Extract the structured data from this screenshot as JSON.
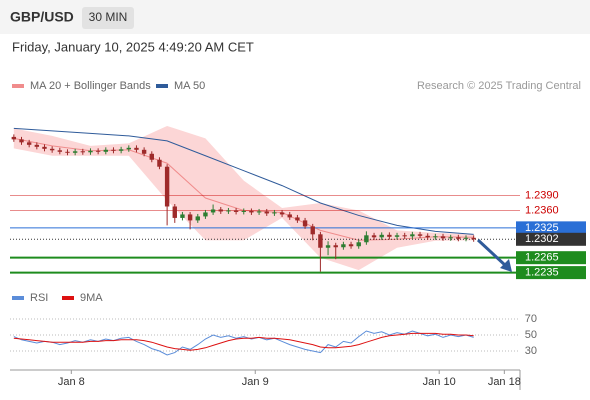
{
  "header": {
    "symbol": "GBP/USD",
    "interval": "30 MIN",
    "timestamp": "Friday, January 10, 2025 4:49:20 AM CET"
  },
  "chart_data": [
    {
      "type": "candlestick",
      "credit": "Research © 2025 Trading Central",
      "xlim": [
        -0.5,
        65
      ],
      "ylim": [
        1.22,
        1.255
      ],
      "xticks": [
        {
          "value": 7.5,
          "label": "Jan 8"
        },
        {
          "value": 31.5,
          "label": "Jan 9"
        },
        {
          "value": 55.5,
          "label": "Jan 10"
        },
        {
          "value": 64,
          "label": "Jan 18"
        }
      ],
      "up_color": "#2e7d32",
      "down_color": "#9e2a2a",
      "candles": {
        "open": [
          1.2508,
          1.2503,
          1.2497,
          1.2492,
          1.2488,
          1.2484,
          1.2481,
          1.2478,
          1.2476,
          1.2479,
          1.2477,
          1.248,
          1.2478,
          1.2482,
          1.248,
          1.2483,
          1.2486,
          1.2482,
          1.2474,
          1.2462,
          1.2448,
          1.2368,
          1.2345,
          1.2352,
          1.234,
          1.2348,
          1.2356,
          1.2362,
          1.2358,
          1.236,
          1.2357,
          1.2359,
          1.2356,
          1.2358,
          1.2354,
          1.2356,
          1.2352,
          1.2346,
          1.234,
          1.2328,
          1.2312,
          1.2285,
          1.229,
          1.2286,
          1.2292,
          1.2288,
          1.2296,
          1.231,
          1.2306,
          1.2311,
          1.2307,
          1.231,
          1.2308,
          1.2312,
          1.2309,
          1.2306,
          1.2308,
          1.2304,
          1.2306,
          1.2303,
          1.2305
        ],
        "high": [
          1.2513,
          1.2508,
          1.2502,
          1.2497,
          1.2493,
          1.2489,
          1.2486,
          1.2483,
          1.2484,
          1.2484,
          1.2485,
          1.2485,
          1.2487,
          1.2487,
          1.2488,
          1.2491,
          1.2491,
          1.2487,
          1.2479,
          1.2467,
          1.2453,
          1.2373,
          1.2357,
          1.2357,
          1.2353,
          1.2361,
          1.2372,
          1.2367,
          1.2365,
          1.2365,
          1.2364,
          1.2364,
          1.2363,
          1.2363,
          1.2361,
          1.2361,
          1.2357,
          1.2351,
          1.2345,
          1.2333,
          1.2317,
          1.2298,
          1.2295,
          1.2297,
          1.2297,
          1.2301,
          1.2318,
          1.2315,
          1.2316,
          1.2316,
          1.2315,
          1.2315,
          1.2317,
          1.2317,
          1.2314,
          1.2313,
          1.2313,
          1.2311,
          1.2311,
          1.231,
          1.231
        ],
        "low": [
          1.2498,
          1.2492,
          1.2487,
          1.2483,
          1.2479,
          1.2476,
          1.2473,
          1.2471,
          1.2471,
          1.2472,
          1.2472,
          1.2473,
          1.2473,
          1.2475,
          1.2475,
          1.2478,
          1.2477,
          1.2469,
          1.2457,
          1.2443,
          1.233,
          1.2335,
          1.234,
          1.2322,
          1.2335,
          1.2343,
          1.2351,
          1.2353,
          1.2353,
          1.2352,
          1.2352,
          1.2351,
          1.2351,
          1.2349,
          1.2349,
          1.2347,
          1.2341,
          1.2335,
          1.2323,
          1.23,
          1.2237,
          1.227,
          1.2262,
          1.2281,
          1.2283,
          1.2283,
          1.2291,
          1.2301,
          1.2301,
          1.2302,
          1.2302,
          1.2303,
          1.2303,
          1.2304,
          1.2301,
          1.2301,
          1.2299,
          1.2299,
          1.2298,
          1.2298,
          1.2297
        ],
        "close": [
          1.2503,
          1.2497,
          1.2492,
          1.2488,
          1.2484,
          1.2481,
          1.2478,
          1.2476,
          1.2479,
          1.2477,
          1.248,
          1.2478,
          1.2482,
          1.248,
          1.2483,
          1.2486,
          1.2482,
          1.2474,
          1.2462,
          1.2448,
          1.2368,
          1.2345,
          1.2352,
          1.234,
          1.2348,
          1.2356,
          1.2362,
          1.2358,
          1.236,
          1.2357,
          1.2359,
          1.2356,
          1.2358,
          1.2354,
          1.2356,
          1.2352,
          1.2346,
          1.234,
          1.2328,
          1.2312,
          1.2285,
          1.229,
          1.2286,
          1.2292,
          1.2288,
          1.2296,
          1.231,
          1.2306,
          1.2311,
          1.2307,
          1.231,
          1.2308,
          1.2312,
          1.2309,
          1.2306,
          1.2308,
          1.2304,
          1.2306,
          1.2303,
          1.2305,
          1.2302
        ]
      },
      "series": [
        {
          "name": "MA 20 + Bollinger Bands",
          "color": "#f08c8c",
          "band_color": "#fcd6d6",
          "x": [
            0,
            5,
            10,
            15,
            20,
            25,
            30,
            35,
            40,
            45,
            50,
            55,
            60
          ],
          "values": [
            1.2505,
            1.249,
            1.248,
            1.2482,
            1.2455,
            1.2385,
            1.236,
            1.2356,
            1.232,
            1.23,
            1.2302,
            1.2307,
            1.2306
          ],
          "upper": [
            1.2525,
            1.251,
            1.249,
            1.2495,
            1.253,
            1.2505,
            1.242,
            1.2365,
            1.2375,
            1.236,
            1.232,
            1.2315,
            1.2312
          ],
          "lower": [
            1.2485,
            1.247,
            1.247,
            1.247,
            1.238,
            1.23,
            1.23,
            1.2345,
            1.2265,
            1.224,
            1.2285,
            1.2299,
            1.23
          ]
        },
        {
          "name": "MA 50",
          "color": "#2f5b9a",
          "x": [
            0,
            5,
            10,
            15,
            20,
            25,
            30,
            35,
            40,
            45,
            50,
            55,
            60
          ],
          "values": [
            1.2525,
            1.252,
            1.2515,
            1.251,
            1.25,
            1.247,
            1.244,
            1.241,
            1.2375,
            1.235,
            1.233,
            1.2318,
            1.2312
          ]
        }
      ],
      "levels": [
        {
          "value": 1.239,
          "label": "1.2390",
          "color": "#cc0000",
          "filled": false
        },
        {
          "value": 1.236,
          "label": "1.2360",
          "color": "#cc0000",
          "filled": false
        },
        {
          "value": 1.2325,
          "label": "1.2325",
          "color": "#2a6fd6",
          "filled": true
        },
        {
          "value": 1.2265,
          "label": "1.2265",
          "color": "#1e8c1e",
          "filled": true
        },
        {
          "value": 1.2235,
          "label": "1.2235",
          "color": "#1e8c1e",
          "filled": true
        }
      ],
      "last_price": {
        "value": 1.2302,
        "label": "1.2302",
        "color": "#333333"
      }
    },
    {
      "type": "line",
      "ylim": [
        10,
        80
      ],
      "yticks": [
        70,
        50,
        30
      ],
      "grid": true,
      "series": [
        {
          "name": "RSI",
          "color": "#5b8dd9",
          "values": [
            48,
            44,
            42,
            40,
            42,
            41,
            38,
            40,
            43,
            41,
            44,
            42,
            45,
            43,
            46,
            47,
            42,
            38,
            33,
            30,
            25,
            28,
            35,
            32,
            38,
            45,
            50,
            47,
            49,
            46,
            48,
            45,
            47,
            44,
            46,
            42,
            38,
            35,
            32,
            30,
            28,
            38,
            35,
            42,
            40,
            48,
            55,
            52,
            54,
            50,
            53,
            51,
            55,
            52,
            49,
            51,
            47,
            50,
            48,
            50,
            47
          ]
        },
        {
          "name": "9MA",
          "color": "#dd1111",
          "values": [
            46,
            45,
            44,
            43,
            42,
            41,
            41,
            41,
            41,
            41,
            42,
            42,
            43,
            43,
            44,
            44,
            44,
            43,
            41,
            38,
            35,
            33,
            32,
            31,
            32,
            34,
            37,
            40,
            43,
            45,
            46,
            46,
            47,
            46,
            46,
            45,
            44,
            42,
            40,
            38,
            35,
            34,
            34,
            35,
            36,
            38,
            41,
            44,
            47,
            49,
            50,
            51,
            52,
            52,
            52,
            52,
            51,
            51,
            50,
            50,
            49
          ]
        }
      ]
    }
  ]
}
